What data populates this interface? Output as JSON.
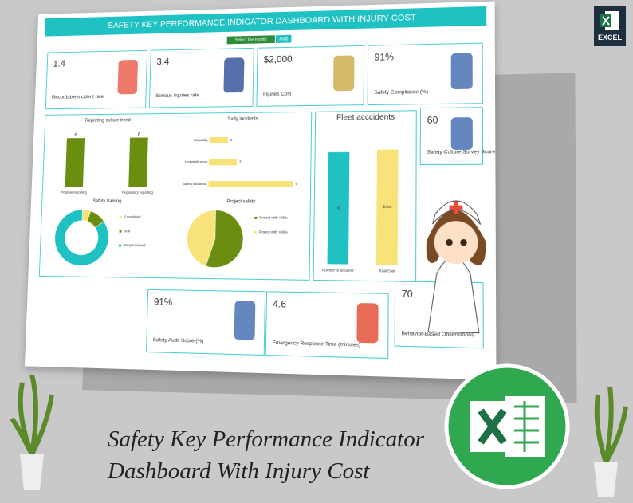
{
  "logo_label": "EXCEL",
  "dashboard": {
    "title": "SAFETY KEY PERFORMANCE INDICATOR DASHBOARD WITH INJURY COST",
    "month_selector": {
      "label": "Select the month",
      "value": "Aug"
    },
    "kpis": [
      {
        "value": "1.4",
        "label": "Recordable incident rate"
      },
      {
        "value": "3.4",
        "label": "Serious injuries rate"
      },
      {
        "value": "$2,000",
        "label": "Injuries Cost"
      },
      {
        "value": "91%",
        "label": "Safety Compliance (%)"
      },
      {
        "value": "60",
        "label": "Safety Culture Survey Score"
      },
      {
        "value": "91%",
        "label": "Safety Audit Score (%)"
      },
      {
        "value": "4.6",
        "label": "Emergency Response Time (minutes)"
      },
      {
        "value": "70",
        "label": "Behavior-Based Observations"
      }
    ],
    "charts": {
      "reporting": {
        "type": "bar",
        "title": "Reporting culture trend",
        "categories": [
          "Positive reporting",
          "Regulatory reporting"
        ],
        "values": [
          6,
          6
        ],
        "ylim": [
          0,
          7
        ],
        "color": "#6b8e10"
      },
      "incidents": {
        "type": "hbar",
        "title": "Safty incidents",
        "categories": [
          "Casuality",
          "Hospitalization",
          "Safety incidents"
        ],
        "values": [
          2,
          3,
          9
        ],
        "xlim": [
          0,
          10
        ],
        "color": "#f7e37a"
      },
      "fleet": {
        "type": "bar",
        "title": "Fleet acccidents",
        "categories": [
          "Number of accident",
          "Total Cost"
        ],
        "values": [
          6,
          700
        ],
        "value_labels": [
          "6",
          "$700"
        ],
        "ylims": [
          [
            0,
            7
          ],
          [
            0,
            800
          ]
        ],
        "colors": [
          "#1fc1c3",
          "#f7e37a"
        ]
      },
      "training": {
        "type": "donut",
        "title": "Safety training",
        "categories": [
          "Completed",
          "Due",
          "People trained"
        ],
        "values": [
          5,
          10,
          85
        ],
        "colors": [
          "#f7e37a",
          "#6b8e10",
          "#1fc1c3"
        ]
      },
      "project": {
        "type": "pie",
        "title": "Project safety",
        "categories": [
          "Project with <95%",
          "Project with >95%"
        ],
        "values": [
          55,
          45
        ],
        "colors": [
          "#6b8e10",
          "#f7e37a"
        ]
      }
    }
  },
  "caption": [
    "Safety Key Performance Indicator",
    "Dashboard With Injury Cost"
  ]
}
